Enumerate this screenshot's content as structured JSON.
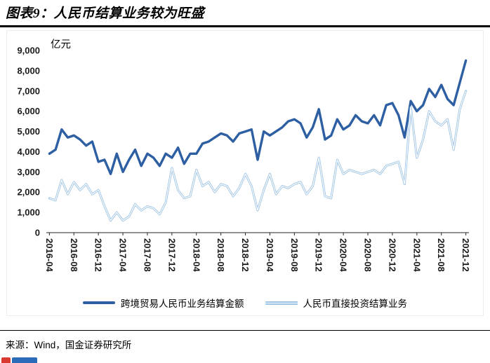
{
  "title": "图表9：人民币结算业务较为旺盛",
  "source": "来源：Wind，国金证券研究所",
  "watermark_icon": "red-blue-logo",
  "chart_data": {
    "type": "line",
    "title": "图表9：人民币结算业务较为旺盛",
    "unit": "亿元",
    "ylim": [
      0,
      9000
    ],
    "ytick_step": 1000,
    "xtick_every": 4,
    "grid": false,
    "legend_position": "bottom",
    "axis_color": "#262626",
    "categories": [
      "2016-04",
      "2016-05",
      "2016-06",
      "2016-07",
      "2016-08",
      "2016-09",
      "2016-10",
      "2016-11",
      "2016-12",
      "2017-01",
      "2017-02",
      "2017-03",
      "2017-04",
      "2017-05",
      "2017-06",
      "2017-07",
      "2017-08",
      "2017-09",
      "2017-10",
      "2017-11",
      "2017-12",
      "2018-01",
      "2018-02",
      "2018-03",
      "2018-04",
      "2018-05",
      "2018-06",
      "2018-07",
      "2018-08",
      "2018-09",
      "2018-10",
      "2018-11",
      "2018-12",
      "2019-01",
      "2019-02",
      "2019-03",
      "2019-04",
      "2019-05",
      "2019-06",
      "2019-07",
      "2019-08",
      "2019-09",
      "2019-10",
      "2019-11",
      "2019-12",
      "2020-01",
      "2020-02",
      "2020-03",
      "2020-04",
      "2020-05",
      "2020-06",
      "2020-07",
      "2020-08",
      "2020-09",
      "2020-10",
      "2020-11",
      "2020-12",
      "2021-01",
      "2021-02",
      "2021-03",
      "2021-04",
      "2021-05",
      "2021-06",
      "2021-07",
      "2021-08",
      "2021-09",
      "2021-10",
      "2021-11",
      "2021-12"
    ],
    "series": [
      {
        "name": "跨境贸易人民币业务结算金额",
        "color": "#2E5FA3",
        "width": 3.4,
        "style": "solid",
        "values": [
          3900,
          4100,
          5100,
          4700,
          4800,
          4600,
          4300,
          4500,
          3500,
          3600,
          2900,
          3900,
          3000,
          3600,
          4100,
          3300,
          3900,
          3700,
          3300,
          3900,
          3700,
          4200,
          3400,
          3900,
          3900,
          4400,
          4500,
          4700,
          4900,
          4800,
          4500,
          4900,
          5000,
          5100,
          3600,
          5000,
          4800,
          5000,
          5200,
          5500,
          5600,
          5400,
          4700,
          5200,
          6100,
          4600,
          4800,
          5600,
          5100,
          5300,
          5800,
          5500,
          5400,
          5800,
          5300,
          6300,
          6400,
          5800,
          4700,
          6500,
          6000,
          6300,
          7100,
          6700,
          7300,
          6600,
          6300,
          7400,
          8500
        ]
      },
      {
        "name": "人民币直接投资结算业务",
        "color": "#9DC3E6",
        "width": 3,
        "style": "double",
        "values": [
          1700,
          1600,
          2600,
          1900,
          2500,
          2100,
          2400,
          1900,
          2100,
          1300,
          600,
          1000,
          600,
          800,
          1400,
          1100,
          1300,
          1200,
          900,
          1500,
          3200,
          2100,
          1700,
          1800,
          3100,
          2300,
          2500,
          2000,
          2400,
          2300,
          1800,
          2200,
          2900,
          2300,
          1100,
          2100,
          2900,
          1900,
          2300,
          2200,
          2400,
          2500,
          1900,
          2300,
          3700,
          1800,
          1700,
          3600,
          2900,
          3100,
          3000,
          2900,
          3000,
          3100,
          2900,
          3300,
          3400,
          3500,
          2400,
          6200,
          3700,
          4600,
          6000,
          5500,
          5300,
          5600,
          4100,
          6100,
          7000
        ]
      }
    ]
  }
}
